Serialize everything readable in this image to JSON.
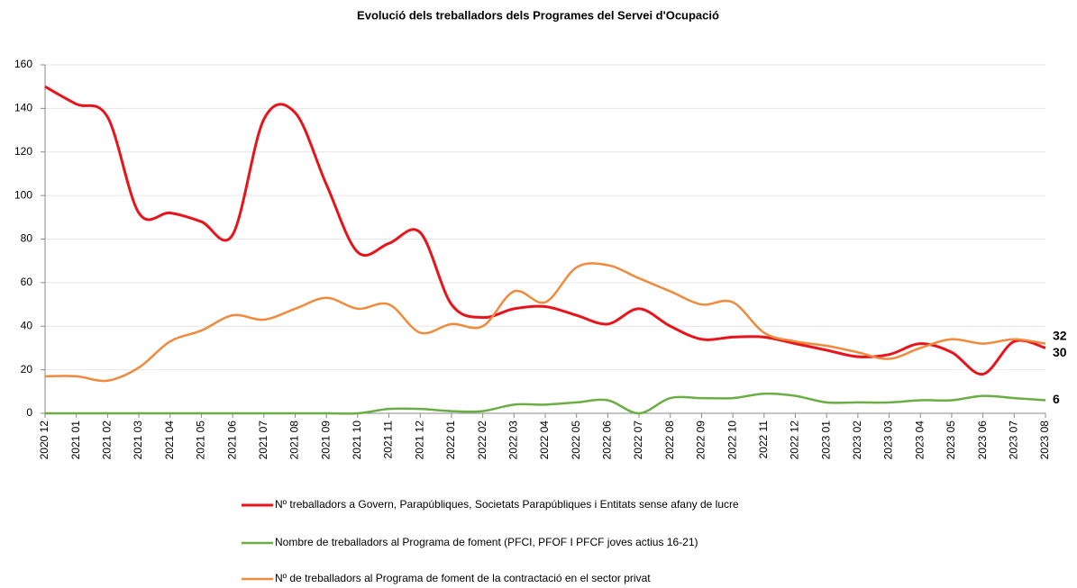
{
  "chart_data": {
    "type": "line",
    "title": "Evolució dels treballadors dels Programes del Servei d'Ocupació",
    "categories": [
      "2020 12",
      "2021 01",
      "2021 02",
      "2021 03",
      "2021 04",
      "2021 05",
      "2021 06",
      "2021 07",
      "2021 08",
      "2021 09",
      "2021 10",
      "2021 11",
      "2021 12",
      "2022 01",
      "2022 02",
      "2022 03",
      "2022 04",
      "2022 05",
      "2022 06",
      "2022 07",
      "2022 08",
      "2022 09",
      "2022 10",
      "2022 11",
      "2022 12",
      "2023 01",
      "2023 02",
      "2023 03",
      "2023 04",
      "2023 05",
      "2023 06",
      "2023 07",
      "2023 08"
    ],
    "series": [
      {
        "name": "Nº treballadors a Govern, Parapúbliques,  Societats Parapúbliques i Entitats sense afany de lucre",
        "color": "#e8141b",
        "values": [
          150,
          142,
          136,
          92,
          92,
          88,
          82,
          135,
          138,
          105,
          74,
          78,
          83,
          50,
          44,
          48,
          49,
          45,
          41,
          48,
          40,
          34,
          35,
          35,
          32,
          29,
          26,
          27,
          32,
          28,
          18,
          33,
          30
        ]
      },
      {
        "name": "Nombre de treballadors al Programa de foment (PFCI, PFOF I PFCF joves actius 16-21)",
        "color": "#6aae45",
        "values": [
          0,
          0,
          0,
          0,
          0,
          0,
          0,
          0,
          0,
          0,
          0,
          2,
          2,
          1,
          1,
          4,
          4,
          5,
          6,
          0,
          7,
          7,
          7,
          9,
          8,
          5,
          5,
          5,
          6,
          6,
          8,
          7,
          6
        ]
      },
      {
        "name": "Nº de treballadors al Programa de foment de la contractació en el sector privat",
        "color": "#f08a3c",
        "values": [
          17,
          17,
          15,
          21,
          33,
          38,
          45,
          43,
          48,
          53,
          48,
          50,
          37,
          41,
          40,
          56,
          51,
          67,
          68,
          62,
          56,
          50,
          51,
          37,
          33,
          31,
          28,
          25,
          30,
          34,
          32,
          34,
          32
        ]
      }
    ],
    "ylim": [
      0,
      160
    ],
    "yticks": [
      0,
      20,
      40,
      60,
      80,
      100,
      120,
      140,
      160
    ],
    "grid": true
  }
}
